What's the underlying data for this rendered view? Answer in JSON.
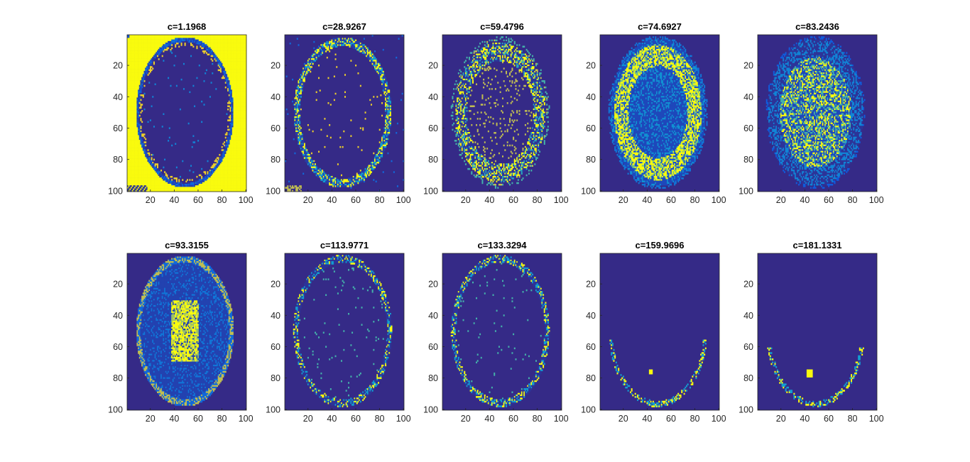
{
  "colors": {
    "background": "#ffffff",
    "map_low": "#352a87",
    "map_mid": "#1d9ed0",
    "map_high": "#f9fb0e",
    "axis": "#262626",
    "title": "#000000"
  },
  "colormap": "parula",
  "chart_data": [
    {
      "type": "heatmap",
      "title": "c=1.1968",
      "xticks": [
        20,
        40,
        60,
        80,
        100
      ],
      "yticks": [
        20,
        40,
        60,
        80,
        100
      ],
      "xlim": [
        0.5,
        100.5
      ],
      "ylim": [
        0.5,
        100.5
      ],
      "pattern": "background"
    },
    {
      "type": "heatmap",
      "title": "c=28.9267",
      "xticks": [
        20,
        40,
        60,
        80,
        100
      ],
      "yticks": [
        20,
        40,
        60,
        80,
        100
      ],
      "xlim": [
        0.5,
        100.5
      ],
      "ylim": [
        0.5,
        100.5
      ],
      "pattern": "skull-edge"
    },
    {
      "type": "heatmap",
      "title": "c=59.4796",
      "xticks": [
        20,
        40,
        60,
        80,
        100
      ],
      "yticks": [
        20,
        40,
        60,
        80,
        100
      ],
      "xlim": [
        0.5,
        100.5
      ],
      "ylim": [
        0.5,
        100.5
      ],
      "pattern": "csf-cortex"
    },
    {
      "type": "heatmap",
      "title": "c=74.6927",
      "xticks": [
        20,
        40,
        60,
        80,
        100
      ],
      "yticks": [
        20,
        40,
        60,
        80,
        100
      ],
      "xlim": [
        0.5,
        100.5
      ],
      "ylim": [
        0.5,
        100.5
      ],
      "pattern": "grey-matter"
    },
    {
      "type": "heatmap",
      "title": "c=83.2436",
      "xticks": [
        20,
        40,
        60,
        80,
        100
      ],
      "yticks": [
        20,
        40,
        60,
        80,
        100
      ],
      "xlim": [
        0.5,
        100.5
      ],
      "ylim": [
        0.5,
        100.5
      ],
      "pattern": "white-matter"
    },
    {
      "type": "heatmap",
      "title": "c=93.3155",
      "xticks": [
        20,
        40,
        60,
        80,
        100
      ],
      "yticks": [
        20,
        40,
        60,
        80,
        100
      ],
      "xlim": [
        0.5,
        100.5
      ],
      "ylim": [
        0.5,
        100.5
      ],
      "pattern": "ventricles"
    },
    {
      "type": "heatmap",
      "title": "c=113.9771",
      "xticks": [
        20,
        40,
        60,
        80,
        100
      ],
      "yticks": [
        20,
        40,
        60,
        80,
        100
      ],
      "xlim": [
        0.5,
        100.5
      ],
      "ylim": [
        0.5,
        100.5
      ],
      "pattern": "sparse-edge"
    },
    {
      "type": "heatmap",
      "title": "c=133.3294",
      "xticks": [
        20,
        40,
        60,
        80,
        100
      ],
      "yticks": [
        20,
        40,
        60,
        80,
        100
      ],
      "xlim": [
        0.5,
        100.5
      ],
      "ylim": [
        0.5,
        100.5
      ],
      "pattern": "sparse-edge"
    },
    {
      "type": "heatmap",
      "title": "c=159.9696",
      "xticks": [
        20,
        40,
        60,
        80,
        100
      ],
      "yticks": [
        20,
        40,
        60,
        80,
        100
      ],
      "xlim": [
        0.5,
        100.5
      ],
      "ylim": [
        0.5,
        100.5
      ],
      "pattern": "lower-edge"
    },
    {
      "type": "heatmap",
      "title": "c=181.1331",
      "xticks": [
        20,
        40,
        60,
        80,
        100
      ],
      "yticks": [
        20,
        40,
        60,
        80,
        100
      ],
      "xlim": [
        0.5,
        100.5
      ],
      "ylim": [
        0.5,
        100.5
      ],
      "pattern": "lower-blob"
    }
  ]
}
